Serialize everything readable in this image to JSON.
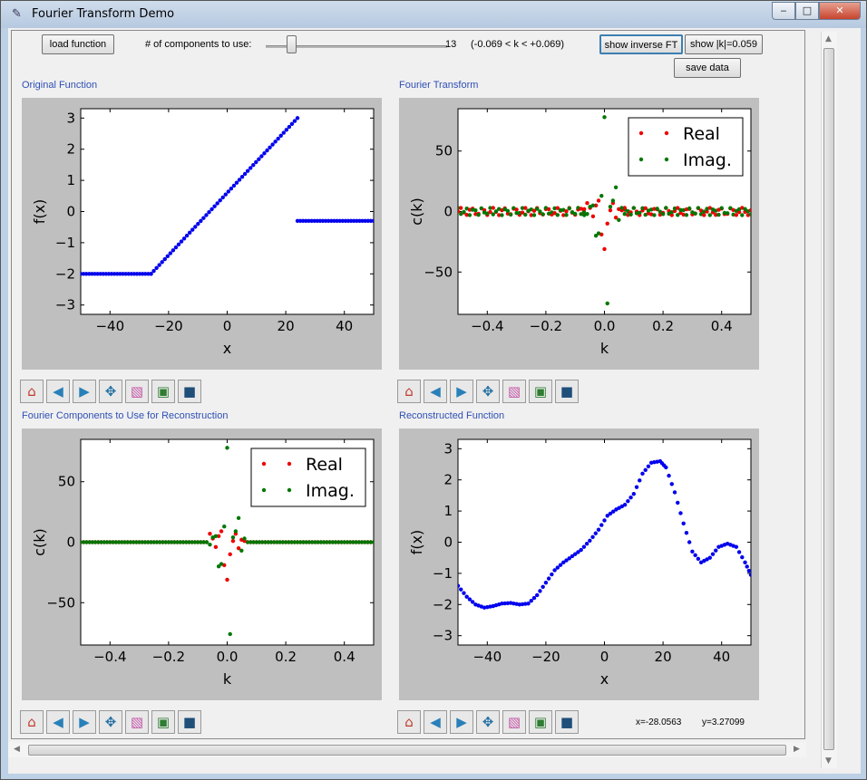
{
  "window": {
    "title": "Fourier Transform Demo",
    "minimize_glyph": "‒",
    "maximize_glyph": "□",
    "close_glyph": "✕"
  },
  "controls": {
    "load_function": "load function",
    "components_label": "# of components to use:",
    "components_value": "13",
    "k_range": "(-0.069 < k < +0.069)",
    "show_inverse": "show inverse FT",
    "show_k": "show |k|=0.059",
    "save_data": "save data"
  },
  "panels": {
    "original": "Original Function",
    "fourier": "Fourier Transform",
    "components": "Fourier Components to Use for Reconstruction",
    "reconstructed": "Reconstructed Function"
  },
  "toolbar_icons": [
    {
      "name": "home-icon",
      "glyph": "⌂",
      "color": "#c0392b"
    },
    {
      "name": "back-icon",
      "glyph": "◀",
      "color": "#2980b9"
    },
    {
      "name": "forward-icon",
      "glyph": "▶",
      "color": "#2980b9"
    },
    {
      "name": "pan-icon",
      "glyph": "✥",
      "color": "#2471a3"
    },
    {
      "name": "zoom-icon",
      "glyph": "▧",
      "color": "#c455a8"
    },
    {
      "name": "configure-subplots-icon",
      "glyph": "▣",
      "color": "#2e7d32"
    },
    {
      "name": "save-icon",
      "glyph": "■",
      "color": "#1f4e79"
    }
  ],
  "status": {
    "x": "x=-28.0563",
    "y": "y=3.27099"
  },
  "chart_data": [
    {
      "type": "scatter",
      "title": "",
      "xlabel": "x",
      "ylabel": "f(x)",
      "xlim": [
        -50,
        50
      ],
      "ylim": [
        -3.3,
        3.3
      ],
      "xticks": [
        -40,
        -20,
        0,
        20,
        40
      ],
      "yticks": [
        -3,
        -2,
        -1,
        0,
        1,
        2,
        3
      ],
      "series": [
        {
          "color": "#0000ee",
          "segments": [
            {
              "x_start": -50,
              "x_end": -26,
              "y_start": -2,
              "y_end": -2
            },
            {
              "x_start": -26,
              "x_end": 24,
              "y_start": -2,
              "y_end": 3
            },
            {
              "x_start": 24,
              "x_end": 50,
              "y_start": -0.3,
              "y_end": -0.3
            }
          ]
        }
      ]
    },
    {
      "type": "scatter",
      "title": "",
      "xlabel": "k",
      "ylabel": "c(k)",
      "xlim": [
        -0.5,
        0.5
      ],
      "ylim": [
        -85,
        85
      ],
      "xticks": [
        -0.4,
        -0.2,
        0.0,
        0.2,
        0.4
      ],
      "yticks": [
        -50,
        0,
        50
      ],
      "legend_position": "top-right",
      "series": [
        {
          "name": "Real",
          "color": "#ee0000",
          "x": [
            -0.069,
            -0.059,
            -0.049,
            -0.039,
            -0.029,
            -0.02,
            -0.01,
            0.0,
            0.01,
            0.02,
            0.029,
            0.039,
            0.049,
            0.059,
            0.069
          ],
          "y": [
            2,
            7,
            3,
            -4,
            5,
            9,
            -19,
            -31,
            -10,
            1,
            7,
            -5,
            2,
            1,
            3
          ]
        },
        {
          "name": "Imag.",
          "color": "#007700",
          "x": [
            -0.069,
            -0.059,
            -0.049,
            -0.039,
            -0.029,
            -0.02,
            -0.01,
            0.0,
            0.01,
            0.02,
            0.029,
            0.039,
            0.049,
            0.059,
            0.069
          ],
          "y": [
            -3,
            -2,
            4,
            5,
            -20,
            -18,
            13,
            78,
            -76,
            4,
            9,
            20,
            -7,
            3,
            -2
          ]
        }
      ],
      "noise_floor_amplitude": 3
    },
    {
      "type": "scatter",
      "title": "",
      "xlabel": "k",
      "ylabel": "c(k)",
      "xlim": [
        -0.5,
        0.5
      ],
      "ylim": [
        -85,
        85
      ],
      "xticks": [
        -0.4,
        -0.2,
        0.0,
        0.2,
        0.4
      ],
      "yticks": [
        -50,
        0,
        50
      ],
      "legend_position": "top-right",
      "series": [
        {
          "name": "Real",
          "color": "#ee0000",
          "x": [
            -0.059,
            -0.049,
            -0.039,
            -0.029,
            -0.02,
            -0.01,
            0.0,
            0.01,
            0.02,
            0.029,
            0.039,
            0.049,
            0.059
          ],
          "y": [
            7,
            3,
            -4,
            5,
            9,
            -19,
            -31,
            -10,
            1,
            7,
            -5,
            2,
            1
          ]
        },
        {
          "name": "Imag.",
          "color": "#007700",
          "x": [
            -0.059,
            -0.049,
            -0.039,
            -0.029,
            -0.02,
            -0.01,
            0.0,
            0.01,
            0.02,
            0.029,
            0.039,
            0.049,
            0.059
          ],
          "y": [
            -2,
            4,
            5,
            -20,
            -18,
            13,
            78,
            -76,
            4,
            9,
            20,
            -7,
            3
          ]
        }
      ]
    },
    {
      "type": "scatter",
      "title": "",
      "xlabel": "x",
      "ylabel": "f(x)",
      "xlim": [
        -50,
        50
      ],
      "ylim": [
        -3.3,
        3.3
      ],
      "xticks": [
        -40,
        -20,
        0,
        20,
        40
      ],
      "yticks": [
        -3,
        -2,
        -1,
        0,
        1,
        2,
        3
      ],
      "series": [
        {
          "color": "#0000ee",
          "x": [
            -50,
            -47,
            -44,
            -41,
            -38,
            -35,
            -32,
            -29,
            -26,
            -23,
            -20,
            -17,
            -14,
            -11,
            -8,
            -5,
            -2,
            1,
            4,
            7,
            10,
            13,
            16,
            19,
            21,
            24,
            27,
            30,
            33,
            36,
            39,
            42,
            45,
            48,
            50
          ],
          "y": [
            -1.4,
            -1.75,
            -2.0,
            -2.1,
            -2.05,
            -1.97,
            -1.95,
            -2.0,
            -1.97,
            -1.7,
            -1.3,
            -0.9,
            -0.65,
            -0.45,
            -0.25,
            0.05,
            0.4,
            0.85,
            1.05,
            1.2,
            1.55,
            2.2,
            2.55,
            2.6,
            2.4,
            1.6,
            0.6,
            -0.3,
            -0.65,
            -0.5,
            -0.15,
            -0.05,
            -0.15,
            -0.65,
            -1.05
          ]
        }
      ]
    }
  ]
}
